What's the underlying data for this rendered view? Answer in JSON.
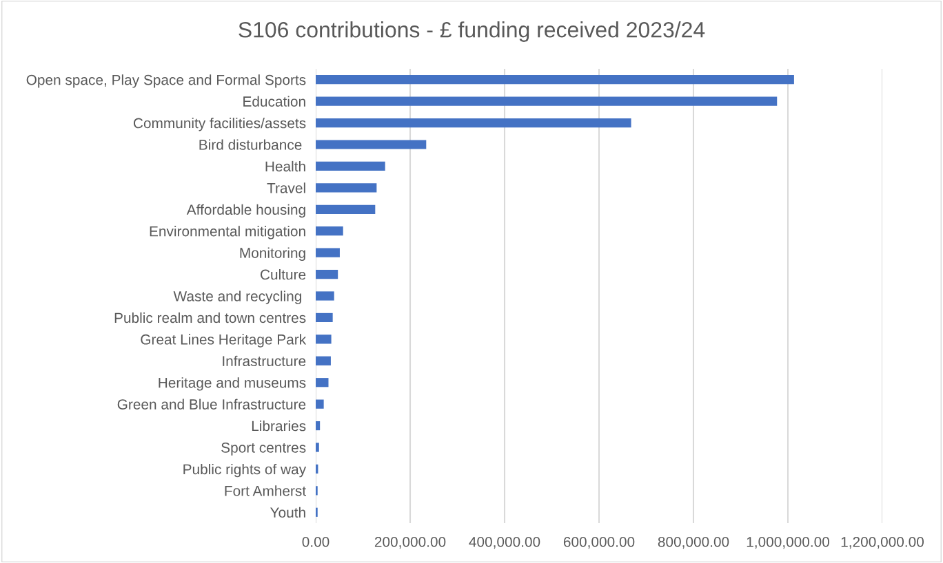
{
  "chart_data": {
    "type": "bar",
    "orientation": "horizontal",
    "title": "S106 contributions - £ funding received 2023/24",
    "categories": [
      "Open space, Play Space and Formal Sports",
      "Education",
      "Community facilities/assets",
      "Bird disturbance ",
      "Health",
      "Travel",
      "Affordable housing",
      "Environmental mitigation",
      "Monitoring",
      "Culture",
      "Waste and recycling ",
      "Public realm and town centres",
      "Great Lines Heritage Park",
      "Infrastructure",
      "Heritage and museums",
      "Green and Blue Infrastructure",
      "Libraries",
      "Sport centres",
      "Public rights of way",
      "Fort Amherst",
      "Youth"
    ],
    "values": [
      1013000,
      977000,
      668000,
      234000,
      147000,
      129000,
      126000,
      58000,
      51000,
      47000,
      39000,
      36000,
      33000,
      32000,
      27000,
      17000,
      9000,
      7000,
      5000,
      4000,
      4000
    ],
    "color": "#4472c4",
    "xlim": [
      0,
      1200000
    ],
    "xticks": [
      {
        "value": 0,
        "label": "0.00"
      },
      {
        "value": 200000,
        "label": "200,000.00"
      },
      {
        "value": 400000,
        "label": "400,000.00"
      },
      {
        "value": 600000,
        "label": "600,000.00"
      },
      {
        "value": 800000,
        "label": "800,000.00"
      },
      {
        "value": 1000000,
        "label": "1,000,000.00"
      },
      {
        "value": 1200000,
        "label": "1,200,000.00"
      }
    ],
    "grid": "x"
  }
}
